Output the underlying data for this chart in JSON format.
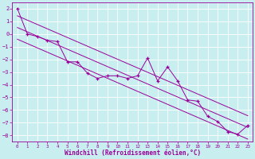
{
  "xlabel": "Windchill (Refroidissement éolien,°C)",
  "bg_color": "#c8eef0",
  "grid_color": "#b0d8dc",
  "line_color": "#990099",
  "x_data": [
    0,
    1,
    2,
    3,
    4,
    5,
    6,
    7,
    8,
    9,
    10,
    11,
    12,
    13,
    14,
    15,
    16,
    17,
    18,
    19,
    20,
    21,
    22,
    23
  ],
  "y_scatter": [
    2.0,
    0.0,
    -0.2,
    -0.5,
    -0.6,
    -2.2,
    -2.2,
    -3.1,
    -3.5,
    -3.3,
    -3.3,
    -3.5,
    -3.3,
    -1.9,
    -3.7,
    -2.6,
    -3.7,
    -5.2,
    -5.3,
    -6.5,
    -6.9,
    -7.7,
    -7.9,
    -7.2
  ],
  "ylim": [
    -8.5,
    2.5
  ],
  "xlim": [
    -0.5,
    23.5
  ],
  "yticks": [
    2,
    1,
    0,
    -1,
    -2,
    -3,
    -4,
    -5,
    -6,
    -7,
    -8
  ],
  "xticks": [
    0,
    1,
    2,
    3,
    4,
    5,
    6,
    7,
    8,
    9,
    10,
    11,
    12,
    13,
    14,
    15,
    16,
    17,
    18,
    19,
    20,
    21,
    22,
    23
  ]
}
